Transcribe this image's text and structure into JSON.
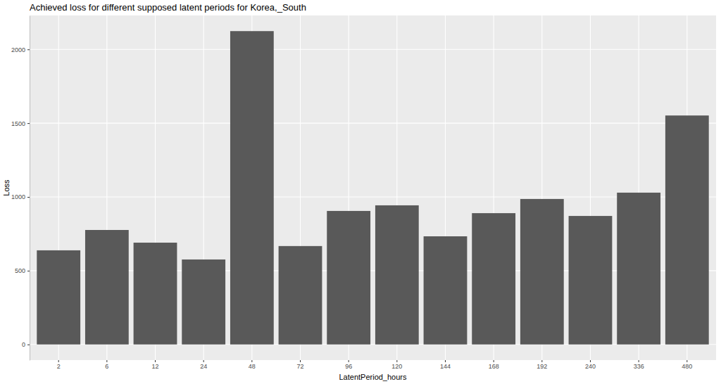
{
  "chart_data": {
    "type": "bar",
    "title": "Achieved loss for different supposed latent periods for Korea,_South",
    "x_label": "LatentPeriod_hours",
    "y_label": "Loss",
    "categories": [
      "2",
      "6",
      "12",
      "24",
      "48",
      "72",
      "96",
      "120",
      "144",
      "168",
      "192",
      "240",
      "336",
      "480"
    ],
    "values": [
      638,
      776,
      690,
      576,
      2124,
      667,
      905,
      943,
      733,
      890,
      986,
      871,
      1029,
      1552
    ],
    "color": "#595959",
    "ylim": [
      -106,
      2230
    ],
    "yticks": [
      0,
      500,
      1000,
      1500,
      2000
    ],
    "grid": true
  }
}
